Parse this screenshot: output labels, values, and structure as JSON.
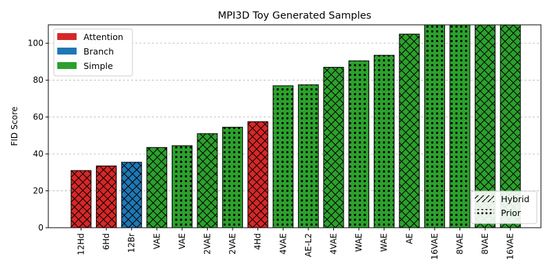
{
  "chart_data": {
    "type": "bar",
    "title": "MPI3D Toy Generated Samples",
    "xlabel": "",
    "ylabel": "FID Score",
    "ylim": [
      0,
      110
    ],
    "yticks": [
      0,
      20,
      40,
      60,
      80,
      100
    ],
    "grid": "y-dashed",
    "categories": [
      "12Hd",
      "6Hd",
      "12Br",
      "VAE",
      "VAE",
      "2VAE",
      "2VAE",
      "4Hd",
      "4VAE",
      "AE-L2",
      "4VAE",
      "WAE",
      "WAE",
      "AE",
      "16VAE",
      "8VAE",
      "8VAE",
      "16VAE"
    ],
    "values": [
      31,
      33.5,
      35.5,
      43.5,
      44.5,
      51,
      54.5,
      57.5,
      77,
      77.5,
      87,
      90.5,
      93.5,
      105,
      110,
      110,
      110,
      110
    ],
    "groups": [
      "Attention",
      "Attention",
      "Branch",
      "Simple",
      "Simple",
      "Simple",
      "Simple",
      "Attention",
      "Simple",
      "Simple",
      "Simple",
      "Simple",
      "Simple",
      "Simple",
      "Simple",
      "Simple",
      "Simple",
      "Simple"
    ],
    "patterns": [
      "Hybrid",
      "Hybrid",
      "Hybrid",
      "Hybrid",
      "Prior",
      "Hybrid",
      "Prior",
      "Hybrid",
      "Prior",
      "Prior",
      "Hybrid",
      "Prior",
      "Prior",
      "Hybrid",
      "Prior",
      "Prior",
      "Hybrid",
      "Hybrid"
    ],
    "color_legend": {
      "placement": "top-left",
      "entries": [
        {
          "name": "Attention",
          "color": "#d62728"
        },
        {
          "name": "Branch",
          "color": "#1f77b4"
        },
        {
          "name": "Simple",
          "color": "#2ca02c"
        }
      ]
    },
    "pattern_legend": {
      "placement": "bottom-right",
      "entries": [
        {
          "name": "Hybrid",
          "pattern": "crosshatch"
        },
        {
          "name": "Prior",
          "pattern": "dots"
        }
      ]
    }
  }
}
